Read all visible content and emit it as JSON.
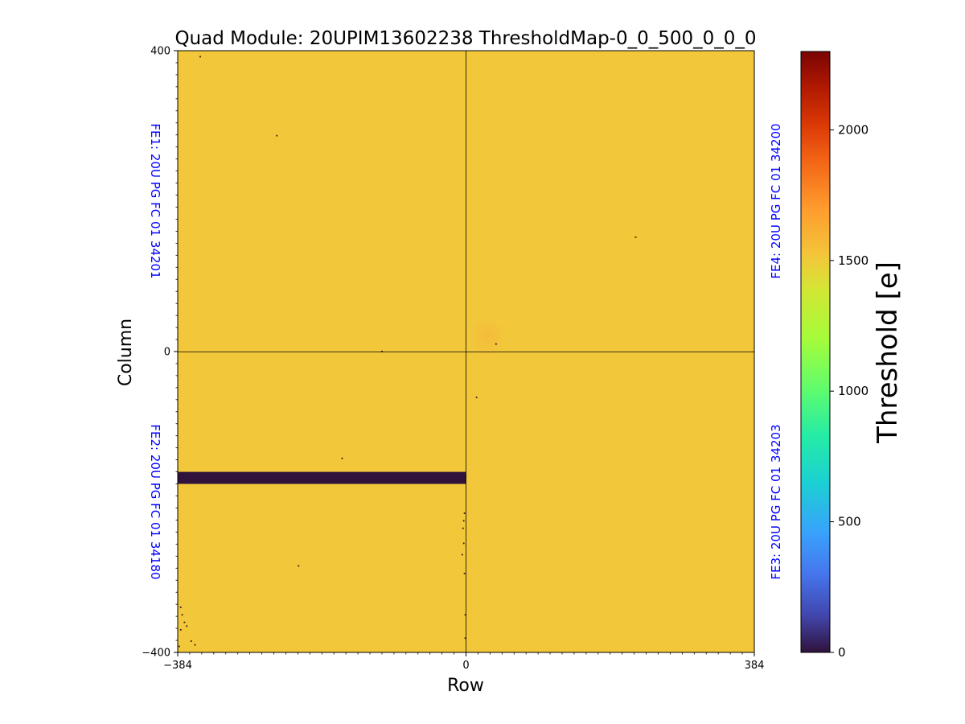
{
  "chart_data": {
    "type": "heatmap",
    "title": "Quad Module: 20UPIM13602238 ThresholdMap-0_0_500_0_0_0",
    "xlabel": "Row",
    "ylabel": "Column",
    "xlim": [
      -384,
      384
    ],
    "ylim": [
      -400,
      400
    ],
    "x_ticks": [
      -384,
      0,
      384
    ],
    "y_ticks": [
      -400,
      0,
      400
    ],
    "x_tick_labels": [
      "−384",
      "0",
      "384"
    ],
    "y_tick_labels": [
      "−400",
      "0",
      "400"
    ],
    "colorbar": {
      "label": "Threshold [e]",
      "range": [
        0,
        2300
      ],
      "ticks": [
        0,
        500,
        1000,
        1500,
        2000
      ],
      "tick_labels": [
        "0",
        "500",
        "1000",
        "1500",
        "2000"
      ],
      "colormap": "turbo"
    },
    "background_value": 1500,
    "regions": [
      {
        "name": "FE2 dead band",
        "x_range": [
          -384,
          0
        ],
        "y_range": [
          -176,
          -160
        ],
        "value": 0
      },
      {
        "name": "FE4 warm spot",
        "x_range": [
          8,
          48
        ],
        "y_range": [
          0,
          40
        ],
        "value": 1560
      }
    ],
    "chips": [
      {
        "id": "FE1",
        "label": "FE1: 20U PG FC 01 34201",
        "quadrant": "top-left"
      },
      {
        "id": "FE2",
        "label": "FE2: 20U PG FC 01 34180",
        "quadrant": "bottom-left"
      },
      {
        "id": "FE3",
        "label": "FE3: 20U PG FC 01 34203",
        "quadrant": "bottom-right"
      },
      {
        "id": "FE4",
        "label": "FE4: 20U PG FC 01 34200",
        "quadrant": "top-right"
      }
    ],
    "dead_pixels": [
      {
        "x": -354,
        "y": 392
      },
      {
        "x": -252,
        "y": 287
      },
      {
        "x": -112,
        "y": 0
      },
      {
        "x": 40,
        "y": 10
      },
      {
        "x": 226,
        "y": 152
      },
      {
        "x": -165,
        "y": -142
      },
      {
        "x": -223,
        "y": -285
      },
      {
        "x": -2,
        "y": -215
      },
      {
        "x": -3,
        "y": -225
      },
      {
        "x": -4,
        "y": -235
      },
      {
        "x": -3,
        "y": -255
      },
      {
        "x": -5,
        "y": -270
      },
      {
        "x": -2,
        "y": -295
      },
      {
        "x": -380,
        "y": -340
      },
      {
        "x": -378,
        "y": -350
      },
      {
        "x": -375,
        "y": -360
      },
      {
        "x": -372,
        "y": -365
      },
      {
        "x": -380,
        "y": -370
      },
      {
        "x": -366,
        "y": -385
      },
      {
        "x": -361,
        "y": -390
      },
      {
        "x": -382,
        "y": -392
      },
      {
        "x": -1,
        "y": -350
      },
      {
        "x": -1,
        "y": -381
      },
      {
        "x": 14,
        "y": -61
      }
    ],
    "colors": {
      "background_pixel": "#f2c83a",
      "dead_band": "#30123b",
      "axis": "#000000",
      "chip_label": "#0000ff"
    }
  }
}
